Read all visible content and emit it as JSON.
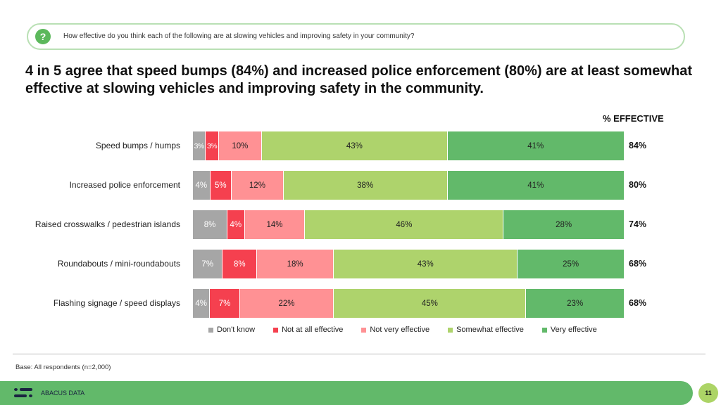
{
  "question": {
    "icon": "question-icon",
    "text": "How effective do you think each of the following are at slowing vehicles and improving safety in your community?"
  },
  "headline": "4 in 5 agree that speed bumps (84%) and increased police enforcement (80%) are at least somewhat effective at slowing vehicles and improving safety in the community.",
  "chart_data": {
    "type": "bar",
    "orientation": "horizontal-stacked-100",
    "title": "",
    "categories": [
      "Speed bumps / humps",
      "Increased police enforcement",
      "Raised crosswalks / pedestrian islands",
      "Roundabouts / mini-roundabouts",
      "Flashing signage / speed displays"
    ],
    "series": [
      {
        "name": "Don't know",
        "color": "#a6a6a6",
        "label_color": "#ffffff",
        "values": [
          3,
          4,
          8,
          7,
          4
        ]
      },
      {
        "name": "Not at all effective",
        "color": "#f5404f",
        "label_color": "#ffffff",
        "values": [
          3,
          5,
          4,
          8,
          7
        ]
      },
      {
        "name": "Not very effective",
        "color": "#ff9194",
        "label_color": "#222222",
        "values": [
          10,
          12,
          14,
          18,
          22
        ]
      },
      {
        "name": "Somewhat effective",
        "color": "#aed36c",
        "label_color": "#222222",
        "values": [
          43,
          38,
          46,
          43,
          45
        ]
      },
      {
        "name": "Very effective",
        "color": "#62b96a",
        "label_color": "#222222",
        "values": [
          41,
          41,
          28,
          25,
          23
        ]
      }
    ],
    "effective_header": "% EFFECTIVE",
    "effective": [
      "84%",
      "80%",
      "74%",
      "68%",
      "68%"
    ],
    "legend_position": "bottom",
    "xlim": [
      0,
      100
    ]
  },
  "footer": {
    "base": "Base: All respondents (n=2,000)",
    "brand": "ABACUS DATA",
    "page": "11"
  }
}
